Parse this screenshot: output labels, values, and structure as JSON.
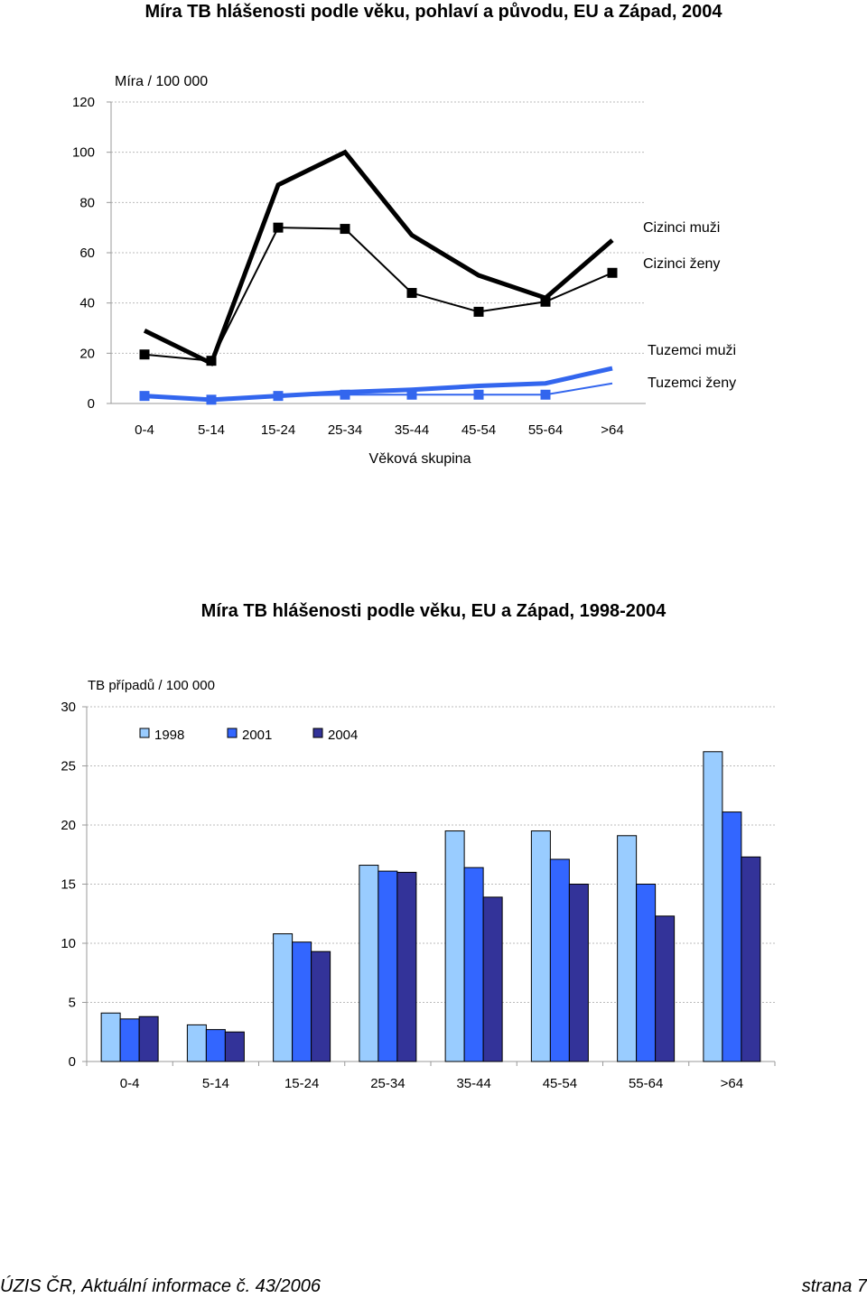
{
  "page": {
    "footer_left": "ÚZIS ČR, Aktuální informace č. 43/2006",
    "footer_right": "strana 7"
  },
  "chart_data": [
    {
      "type": "line",
      "title": "Míra TB hlášenosti podle věku, pohlaví a původu, EU a Západ, 2004",
      "ylabel": "Míra / 100 000",
      "xlabel": "Věková skupina",
      "categories": [
        "0-4",
        "5-14",
        "15-24",
        "25-34",
        "35-44",
        "45-54",
        "55-64",
        ">64"
      ],
      "ylim": [
        0,
        120
      ],
      "yticks": [
        0,
        20,
        40,
        60,
        80,
        100,
        120
      ],
      "grid": true,
      "legend_position": "right",
      "series": [
        {
          "name": "Cizinci muži",
          "color": "#000000",
          "style": "thick",
          "markers": false,
          "values": [
            29,
            16,
            87,
            100,
            67,
            51,
            42,
            65
          ]
        },
        {
          "name": "Cizinci ženy",
          "color": "#000000",
          "style": "thin",
          "markers": true,
          "values": [
            19.5,
            17,
            70,
            69.5,
            44,
            36.5,
            40.5,
            52
          ]
        },
        {
          "name": "Tuzemci muži",
          "color": "#3366ee",
          "style": "thick",
          "markers": false,
          "values": [
            3,
            1.5,
            3,
            4.5,
            5.5,
            7,
            8,
            14
          ]
        },
        {
          "name": "Tuzemci ženy",
          "color": "#3366ee",
          "style": "thin",
          "markers": true,
          "values": [
            3,
            1.5,
            3,
            3.5,
            3.5,
            3.5,
            3.5,
            8
          ]
        }
      ]
    },
    {
      "type": "bar",
      "title": "Míra TB hlášenosti podle věku, EU a Západ, 1998-2004",
      "ylabel": "TB případů / 100 000",
      "xlabel": "",
      "categories": [
        "0-4",
        "5-14",
        "15-24",
        "25-34",
        "35-44",
        "45-54",
        "55-64",
        ">64"
      ],
      "ylim": [
        0,
        30
      ],
      "yticks": [
        0,
        5,
        10,
        15,
        20,
        25,
        30
      ],
      "grid": true,
      "legend_position": "top",
      "series": [
        {
          "name": "1998",
          "color": "#99ccff",
          "values": [
            4.1,
            3.1,
            10.8,
            16.6,
            19.5,
            19.5,
            19.1,
            26.2
          ]
        },
        {
          "name": "2001",
          "color": "#3366ff",
          "values": [
            3.6,
            2.7,
            10.1,
            16.1,
            16.4,
            17.1,
            15.0,
            21.1
          ]
        },
        {
          "name": "2004",
          "color": "#333399",
          "values": [
            3.8,
            2.5,
            9.3,
            16.0,
            13.9,
            15.0,
            12.3,
            17.3
          ]
        }
      ]
    }
  ]
}
